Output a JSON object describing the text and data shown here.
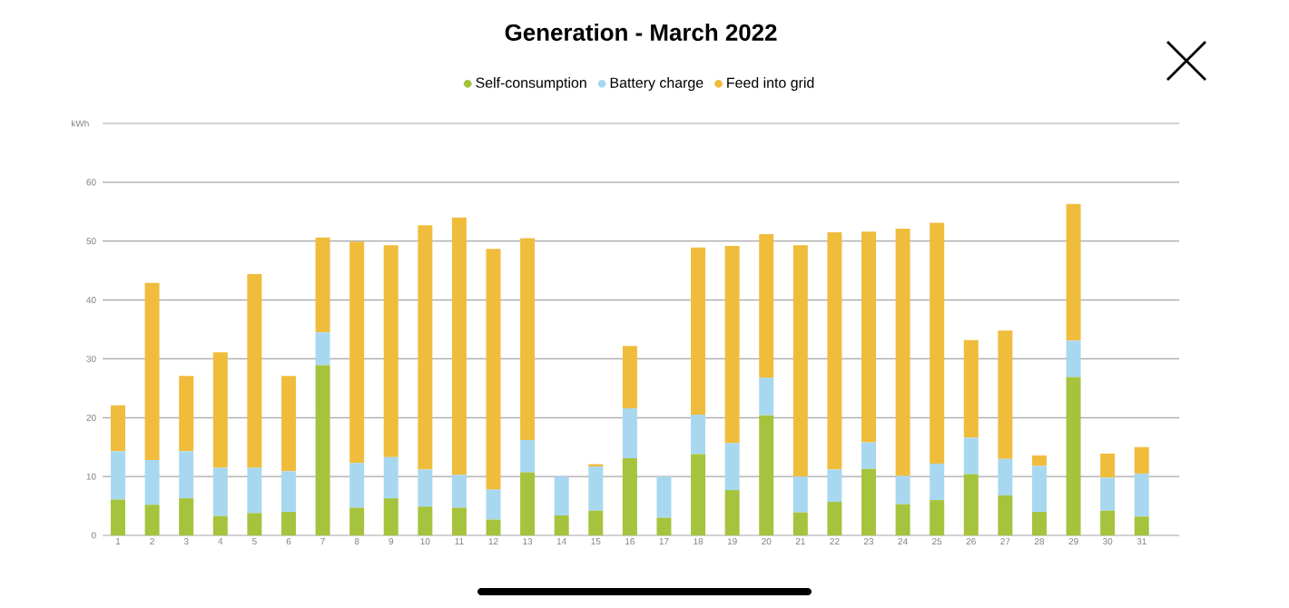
{
  "chart_data": {
    "type": "bar",
    "title": "Generation - March 2022",
    "ylabel": "kWh",
    "categories": [
      "1",
      "2",
      "3",
      "4",
      "5",
      "6",
      "7",
      "8",
      "9",
      "10",
      "11",
      "12",
      "13",
      "14",
      "15",
      "16",
      "17",
      "18",
      "19",
      "20",
      "21",
      "22",
      "23",
      "24",
      "25",
      "26",
      "27",
      "28",
      "29",
      "30",
      "31"
    ],
    "series": [
      {
        "name": "Self-consumption",
        "color": "#a5c33c",
        "values": [
          6.1,
          5.2,
          6.3,
          3.3,
          3.8,
          4.0,
          28.9,
          4.7,
          6.3,
          4.9,
          4.7,
          2.7,
          10.7,
          3.4,
          4.2,
          13.1,
          3.0,
          13.8,
          7.7,
          20.4,
          3.9,
          5.7,
          11.3,
          5.3,
          6.0,
          10.4,
          6.8,
          4.0,
          26.9,
          4.2,
          3.2
        ]
      },
      {
        "name": "Battery charge",
        "color": "#a8d8f0",
        "values": [
          8.2,
          7.6,
          8.0,
          8.2,
          7.7,
          6.9,
          5.6,
          7.6,
          7.0,
          6.3,
          5.6,
          5.1,
          5.5,
          6.6,
          7.5,
          8.5,
          7.0,
          6.7,
          8.0,
          6.4,
          6.1,
          5.5,
          4.5,
          4.8,
          6.2,
          6.2,
          6.2,
          7.8,
          6.2,
          5.6,
          7.3
        ]
      },
      {
        "name": "Feed into grid",
        "color": "#f0bc3c",
        "values": [
          7.8,
          30.1,
          12.8,
          19.6,
          32.9,
          16.2,
          16.1,
          37.6,
          36.0,
          41.5,
          43.7,
          40.9,
          34.3,
          0,
          0.4,
          10.6,
          0,
          28.4,
          33.5,
          24.4,
          39.3,
          40.3,
          35.8,
          42.0,
          40.9,
          16.6,
          21.8,
          1.8,
          23.2,
          4.1,
          4.5
        ]
      }
    ],
    "stacked": true,
    "ylim": [
      0,
      70
    ],
    "yticks": [
      0,
      10,
      20,
      30,
      40,
      50,
      60,
      {
        "value": 70,
        "label": null
      }
    ],
    "grid": "y",
    "legend": "top"
  }
}
